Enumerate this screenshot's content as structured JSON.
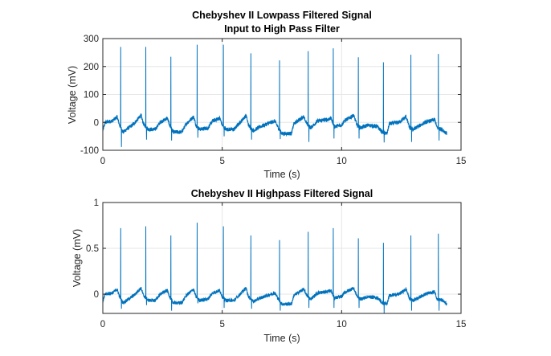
{
  "chart_data": [
    {
      "type": "line",
      "title": "Chebyshev II Lowpass Filtered Signal",
      "subtitle": "Input to High Pass Filter",
      "xlabel": "Time (s)",
      "ylabel": "Voltage (mV)",
      "xlim": [
        0,
        15
      ],
      "ylim": [
        -100,
        300
      ],
      "xticks": [
        0,
        5,
        10,
        15
      ],
      "xtick_labels": [
        "0",
        "5",
        "10",
        "15"
      ],
      "yticks": [
        -100,
        0,
        100,
        200,
        300
      ],
      "ytick_labels": [
        "-100",
        "0",
        "100",
        "200",
        "300"
      ],
      "grid": true,
      "color": "#0072bd",
      "t_end": 14.4,
      "noise_amplitude": 7,
      "r_peaks": [
        [
          0.75,
          270
        ],
        [
          1.8,
          270
        ],
        [
          2.85,
          235
        ],
        [
          3.95,
          278
        ],
        [
          5.05,
          278
        ],
        [
          6.2,
          247
        ],
        [
          7.4,
          222
        ],
        [
          8.6,
          255
        ],
        [
          9.65,
          265
        ],
        [
          10.7,
          233
        ],
        [
          11.75,
          215
        ],
        [
          12.9,
          242
        ],
        [
          14.05,
          245
        ]
      ],
      "s_dips": [
        [
          0.78,
          -88
        ],
        [
          1.83,
          -62
        ],
        [
          2.88,
          -65
        ],
        [
          3.98,
          -55
        ],
        [
          5.08,
          -50
        ],
        [
          6.23,
          -62
        ],
        [
          7.43,
          -60
        ],
        [
          8.63,
          -70
        ],
        [
          9.68,
          -58
        ],
        [
          10.73,
          -58
        ],
        [
          11.78,
          -72
        ],
        [
          12.93,
          -70
        ],
        [
          14.08,
          -65
        ]
      ],
      "baseline": [
        [
          0,
          -30
        ],
        [
          0.1,
          0
        ],
        [
          0.4,
          5
        ],
        [
          0.6,
          20
        ],
        [
          0.7,
          -10
        ],
        [
          0.85,
          -35
        ],
        [
          1.0,
          -25
        ],
        [
          1.3,
          -5
        ],
        [
          1.6,
          25
        ],
        [
          1.7,
          -5
        ],
        [
          1.9,
          -25
        ],
        [
          2.2,
          -25
        ],
        [
          2.4,
          0
        ],
        [
          2.7,
          15
        ],
        [
          2.8,
          -10
        ],
        [
          2.95,
          -35
        ],
        [
          3.3,
          -35
        ],
        [
          3.5,
          -5
        ],
        [
          3.8,
          20
        ],
        [
          3.9,
          -10
        ],
        [
          4.05,
          -25
        ],
        [
          4.4,
          -20
        ],
        [
          4.6,
          5
        ],
        [
          4.9,
          15
        ],
        [
          5.0,
          -10
        ],
        [
          5.15,
          -25
        ],
        [
          5.5,
          -25
        ],
        [
          5.7,
          -5
        ],
        [
          6.0,
          25
        ],
        [
          6.1,
          -10
        ],
        [
          6.3,
          -30
        ],
        [
          6.6,
          -15
        ],
        [
          6.9,
          -5
        ],
        [
          7.2,
          5
        ],
        [
          7.35,
          -20
        ],
        [
          7.5,
          -40
        ],
        [
          7.9,
          -40
        ],
        [
          8.0,
          -5
        ],
        [
          8.4,
          20
        ],
        [
          8.55,
          -5
        ],
        [
          8.7,
          -20
        ],
        [
          9.0,
          5
        ],
        [
          9.4,
          10
        ],
        [
          9.55,
          15
        ],
        [
          9.7,
          -15
        ],
        [
          10.0,
          -10
        ],
        [
          10.1,
          5
        ],
        [
          10.5,
          25
        ],
        [
          10.65,
          -10
        ],
        [
          10.8,
          -20
        ],
        [
          11.1,
          -10
        ],
        [
          11.5,
          -15
        ],
        [
          11.7,
          -35
        ],
        [
          11.9,
          -40
        ],
        [
          12.0,
          -5
        ],
        [
          12.4,
          0
        ],
        [
          12.7,
          20
        ],
        [
          12.85,
          -20
        ],
        [
          13.0,
          -25
        ],
        [
          13.3,
          -10
        ],
        [
          13.5,
          0
        ],
        [
          13.9,
          10
        ],
        [
          14.0,
          -20
        ],
        [
          14.2,
          -25
        ],
        [
          14.4,
          -40
        ]
      ]
    },
    {
      "type": "line",
      "title": "Chebyshev II Highpass Filtered Signal",
      "xlabel": "Time (s)",
      "ylabel": "Voltage (mV)",
      "xlim": [
        0,
        15
      ],
      "ylim": [
        -0.21,
        1
      ],
      "xticks": [
        0,
        5,
        10,
        15
      ],
      "xtick_labels": [
        "0",
        "5",
        "10",
        "15"
      ],
      "yticks": [
        0,
        0.5,
        1
      ],
      "ytick_labels": [
        "0",
        "0.5",
        "1"
      ],
      "grid": true,
      "color": "#0072bd",
      "t_end": 14.4,
      "baseline_scale_from_first": 0.0027,
      "noise_amplitude": 0.019,
      "r_peaks": [
        [
          0.75,
          0.72
        ],
        [
          1.8,
          0.74
        ],
        [
          2.85,
          0.64
        ],
        [
          3.95,
          0.78
        ],
        [
          5.05,
          0.74
        ],
        [
          6.2,
          0.64
        ],
        [
          7.4,
          0.59
        ],
        [
          8.6,
          0.68
        ],
        [
          9.65,
          0.72
        ],
        [
          10.7,
          0.61
        ],
        [
          11.75,
          0.56
        ],
        [
          12.9,
          0.64
        ],
        [
          14.05,
          0.66
        ]
      ],
      "s_dips": [
        [
          0.78,
          -0.16
        ],
        [
          1.83,
          -0.12
        ],
        [
          2.88,
          -0.18
        ],
        [
          3.98,
          -0.1
        ],
        [
          5.08,
          -0.15
        ],
        [
          6.23,
          -0.16
        ],
        [
          7.43,
          -0.18
        ],
        [
          8.63,
          -0.15
        ],
        [
          9.68,
          -0.15
        ],
        [
          10.73,
          -0.15
        ],
        [
          11.78,
          -0.21
        ],
        [
          12.93,
          -0.18
        ],
        [
          14.08,
          -0.18
        ]
      ]
    }
  ]
}
